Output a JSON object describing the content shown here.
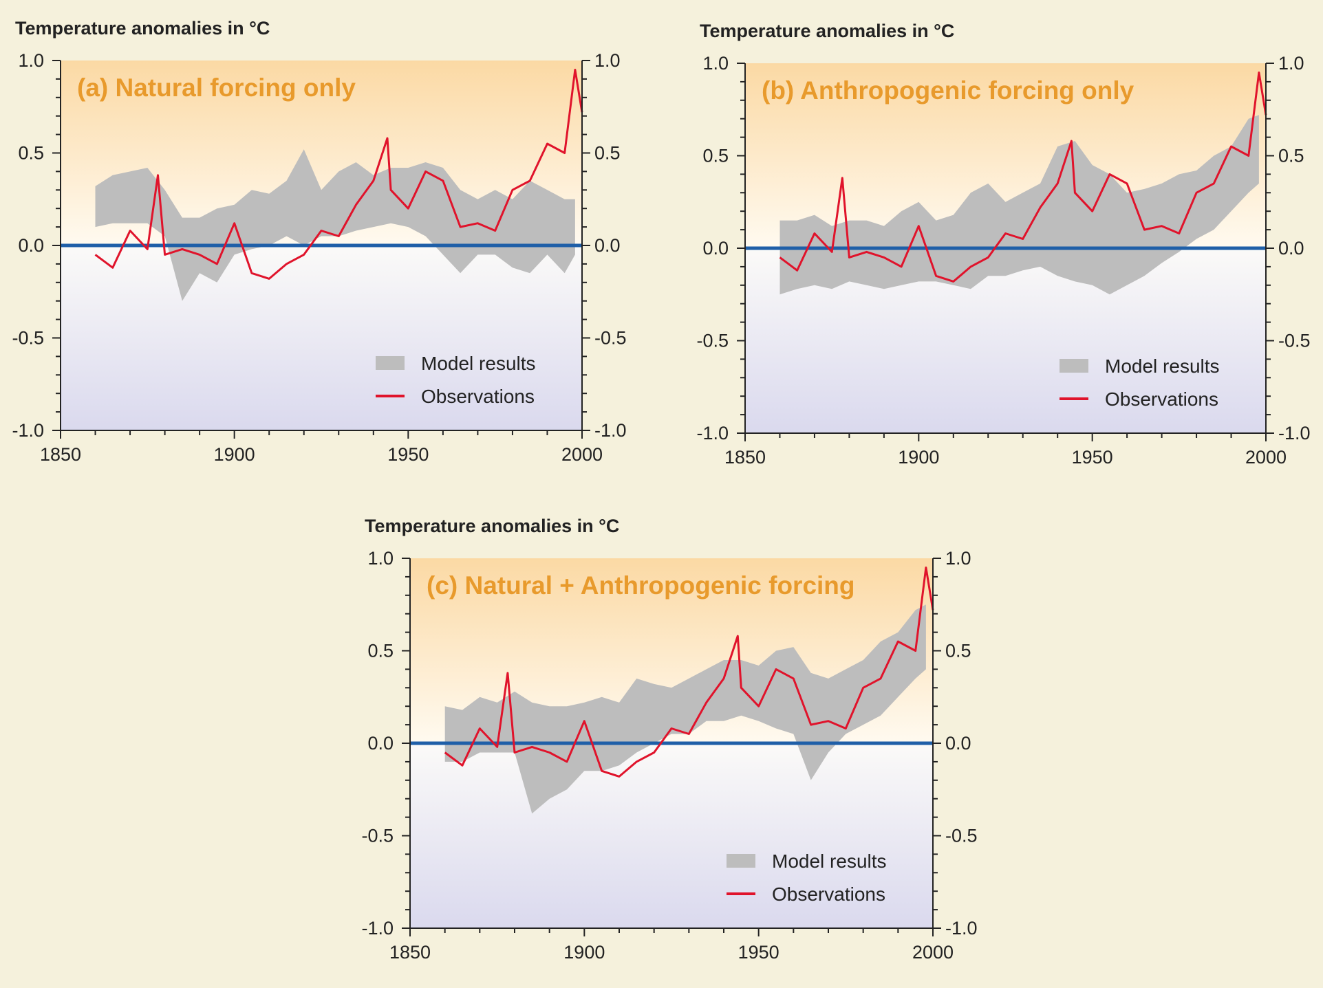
{
  "figure": {
    "colors": {
      "background": "#f5f1dc",
      "warm_fill": "#fbd9a4",
      "cool_fill": "#dad9ee",
      "model_band": "#bdbdbd",
      "observations": "#e0132b",
      "zero_line": "#1f5fa8",
      "panel_title": "#e89a2c",
      "axis": "#222222"
    }
  },
  "chart_data": [
    {
      "id": "a",
      "type": "line",
      "title": "(a) Natural forcing only",
      "ylabel": "Temperature anomalies in °C",
      "xlim": [
        1850,
        2000
      ],
      "ylim": [
        -1.0,
        1.0
      ],
      "x_ticks": [
        "1850",
        "1900",
        "1950",
        "2000"
      ],
      "y_ticks": [
        "1.0",
        "0.5",
        "0.0",
        "-0.5",
        "-1.0"
      ],
      "legend": {
        "position": "bottom-right",
        "model_label": "Model results",
        "obs_label": "Observations"
      },
      "model_band": {
        "x": [
          1860,
          1865,
          1870,
          1875,
          1880,
          1885,
          1890,
          1895,
          1900,
          1905,
          1910,
          1915,
          1920,
          1925,
          1930,
          1935,
          1940,
          1945,
          1950,
          1955,
          1960,
          1965,
          1970,
          1975,
          1980,
          1985,
          1990,
          1995,
          1998
        ],
        "lower": [
          0.1,
          0.12,
          0.12,
          0.12,
          0.05,
          -0.3,
          -0.15,
          -0.2,
          -0.05,
          -0.02,
          0.0,
          0.05,
          0.0,
          0.05,
          0.05,
          0.08,
          0.1,
          0.12,
          0.1,
          0.05,
          -0.05,
          -0.15,
          -0.05,
          -0.05,
          -0.12,
          -0.15,
          -0.05,
          -0.15,
          -0.05
        ],
        "upper": [
          0.32,
          0.38,
          0.4,
          0.42,
          0.3,
          0.15,
          0.15,
          0.2,
          0.22,
          0.3,
          0.28,
          0.35,
          0.52,
          0.3,
          0.4,
          0.45,
          0.38,
          0.42,
          0.42,
          0.45,
          0.42,
          0.3,
          0.25,
          0.3,
          0.25,
          0.35,
          0.3,
          0.25,
          0.25
        ]
      },
      "observations": {
        "x": [
          1860,
          1865,
          1870,
          1875,
          1878,
          1880,
          1885,
          1890,
          1895,
          1900,
          1905,
          1910,
          1915,
          1920,
          1925,
          1930,
          1935,
          1940,
          1944,
          1945,
          1950,
          1955,
          1960,
          1965,
          1970,
          1975,
          1980,
          1985,
          1990,
          1995,
          1998,
          2000
        ],
        "y": [
          -0.05,
          -0.12,
          0.08,
          -0.02,
          0.38,
          -0.05,
          -0.02,
          -0.05,
          -0.1,
          0.12,
          -0.15,
          -0.18,
          -0.1,
          -0.05,
          0.08,
          0.05,
          0.22,
          0.35,
          0.58,
          0.3,
          0.2,
          0.4,
          0.35,
          0.1,
          0.12,
          0.08,
          0.3,
          0.35,
          0.55,
          0.5,
          0.95,
          0.72
        ]
      }
    },
    {
      "id": "b",
      "type": "line",
      "title": "(b) Anthropogenic forcing only",
      "ylabel": "Temperature anomalies in °C",
      "xlim": [
        1850,
        2000
      ],
      "ylim": [
        -1.0,
        1.0
      ],
      "x_ticks": [
        "1850",
        "1900",
        "1950",
        "2000"
      ],
      "y_ticks": [
        "1.0",
        "0.5",
        "0.0",
        "-0.5",
        "-1.0"
      ],
      "legend": {
        "position": "bottom-right",
        "model_label": "Model results",
        "obs_label": "Observations"
      },
      "model_band": {
        "x": [
          1860,
          1865,
          1870,
          1875,
          1880,
          1885,
          1890,
          1895,
          1900,
          1905,
          1910,
          1915,
          1920,
          1925,
          1930,
          1935,
          1940,
          1945,
          1950,
          1955,
          1960,
          1965,
          1970,
          1975,
          1980,
          1985,
          1990,
          1995,
          1998
        ],
        "lower": [
          -0.25,
          -0.22,
          -0.2,
          -0.22,
          -0.18,
          -0.2,
          -0.22,
          -0.2,
          -0.18,
          -0.18,
          -0.2,
          -0.22,
          -0.15,
          -0.15,
          -0.12,
          -0.1,
          -0.15,
          -0.18,
          -0.2,
          -0.25,
          -0.2,
          -0.15,
          -0.08,
          -0.02,
          0.05,
          0.1,
          0.2,
          0.3,
          0.35
        ],
        "upper": [
          0.15,
          0.15,
          0.18,
          0.12,
          0.15,
          0.15,
          0.12,
          0.2,
          0.25,
          0.15,
          0.18,
          0.3,
          0.35,
          0.25,
          0.3,
          0.35,
          0.55,
          0.58,
          0.45,
          0.4,
          0.3,
          0.32,
          0.35,
          0.4,
          0.42,
          0.5,
          0.55,
          0.7,
          0.72
        ]
      },
      "observations": {
        "x": [
          1860,
          1865,
          1870,
          1875,
          1878,
          1880,
          1885,
          1890,
          1895,
          1900,
          1905,
          1910,
          1915,
          1920,
          1925,
          1930,
          1935,
          1940,
          1944,
          1945,
          1950,
          1955,
          1960,
          1965,
          1970,
          1975,
          1980,
          1985,
          1990,
          1995,
          1998,
          2000
        ],
        "y": [
          -0.05,
          -0.12,
          0.08,
          -0.02,
          0.38,
          -0.05,
          -0.02,
          -0.05,
          -0.1,
          0.12,
          -0.15,
          -0.18,
          -0.1,
          -0.05,
          0.08,
          0.05,
          0.22,
          0.35,
          0.58,
          0.3,
          0.2,
          0.4,
          0.35,
          0.1,
          0.12,
          0.08,
          0.3,
          0.35,
          0.55,
          0.5,
          0.95,
          0.72
        ]
      }
    },
    {
      "id": "c",
      "type": "line",
      "title": "(c) Natural + Anthropogenic forcing",
      "ylabel": "Temperature anomalies in °C",
      "xlim": [
        1850,
        2000
      ],
      "ylim": [
        -1.0,
        1.0
      ],
      "x_ticks": [
        "1850",
        "1900",
        "1950",
        "2000"
      ],
      "y_ticks": [
        "1.0",
        "0.5",
        "0.0",
        "-0.5",
        "-1.0"
      ],
      "legend": {
        "position": "bottom-right",
        "model_label": "Model results",
        "obs_label": "Observations"
      },
      "model_band": {
        "x": [
          1860,
          1865,
          1870,
          1875,
          1880,
          1885,
          1890,
          1895,
          1900,
          1905,
          1910,
          1915,
          1920,
          1925,
          1930,
          1935,
          1940,
          1945,
          1950,
          1955,
          1960,
          1965,
          1970,
          1975,
          1980,
          1985,
          1990,
          1995,
          1998
        ],
        "lower": [
          -0.1,
          -0.1,
          -0.05,
          -0.05,
          -0.05,
          -0.38,
          -0.3,
          -0.25,
          -0.15,
          -0.15,
          -0.12,
          -0.05,
          0.0,
          0.05,
          0.05,
          0.12,
          0.12,
          0.15,
          0.12,
          0.08,
          0.05,
          -0.2,
          -0.05,
          0.05,
          0.1,
          0.15,
          0.25,
          0.35,
          0.4
        ],
        "upper": [
          0.2,
          0.18,
          0.25,
          0.22,
          0.28,
          0.22,
          0.2,
          0.2,
          0.22,
          0.25,
          0.22,
          0.35,
          0.32,
          0.3,
          0.35,
          0.4,
          0.45,
          0.45,
          0.42,
          0.5,
          0.52,
          0.38,
          0.35,
          0.4,
          0.45,
          0.55,
          0.6,
          0.72,
          0.75
        ]
      },
      "observations": {
        "x": [
          1860,
          1865,
          1870,
          1875,
          1878,
          1880,
          1885,
          1890,
          1895,
          1900,
          1905,
          1910,
          1915,
          1920,
          1925,
          1930,
          1935,
          1940,
          1944,
          1945,
          1950,
          1955,
          1960,
          1965,
          1970,
          1975,
          1980,
          1985,
          1990,
          1995,
          1998,
          2000
        ],
        "y": [
          -0.05,
          -0.12,
          0.08,
          -0.02,
          0.38,
          -0.05,
          -0.02,
          -0.05,
          -0.1,
          0.12,
          -0.15,
          -0.18,
          -0.1,
          -0.05,
          0.08,
          0.05,
          0.22,
          0.35,
          0.58,
          0.3,
          0.2,
          0.4,
          0.35,
          0.1,
          0.12,
          0.08,
          0.3,
          0.35,
          0.55,
          0.5,
          0.95,
          0.72
        ]
      }
    }
  ]
}
